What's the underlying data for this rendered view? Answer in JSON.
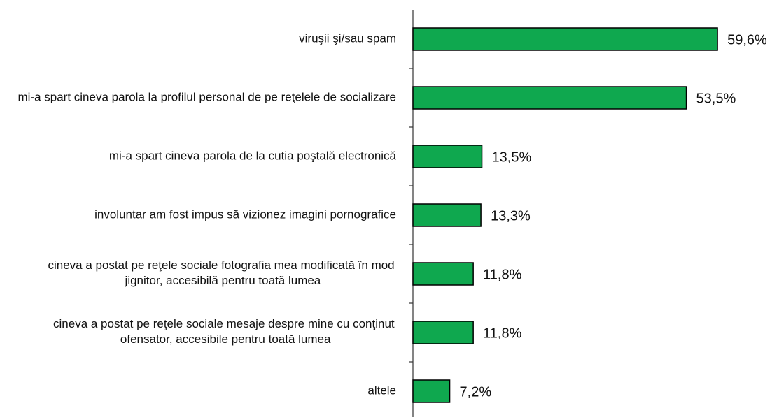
{
  "chart_data": {
    "type": "bar",
    "orientation": "horizontal",
    "categories": [
      "viruşii şi/sau spam",
      "mi-a spart cineva parola la profilul personal de pe reţelele de socializare",
      "mi-a spart cineva parola de la cutia poştală electronică",
      "involuntar am fost impus să vizionez imagini pornografice",
      "cineva a postat pe reţele sociale fotografia mea modificată în mod jignitor, accesibilă pentru toată lumea",
      "cineva a postat pe reţele sociale mesaje despre mine cu conţinut ofensator, accesibile pentru toată lumea",
      "altele"
    ],
    "values": [
      59.6,
      53.5,
      13.5,
      13.3,
      11.8,
      11.8,
      7.2
    ],
    "value_labels": [
      "59,6%",
      "53,5%",
      "13,5%",
      "13,3%",
      "11,8%",
      "11,8%",
      "7,2%"
    ],
    "color": "#0fa84f",
    "xlim": [
      0,
      70
    ]
  }
}
